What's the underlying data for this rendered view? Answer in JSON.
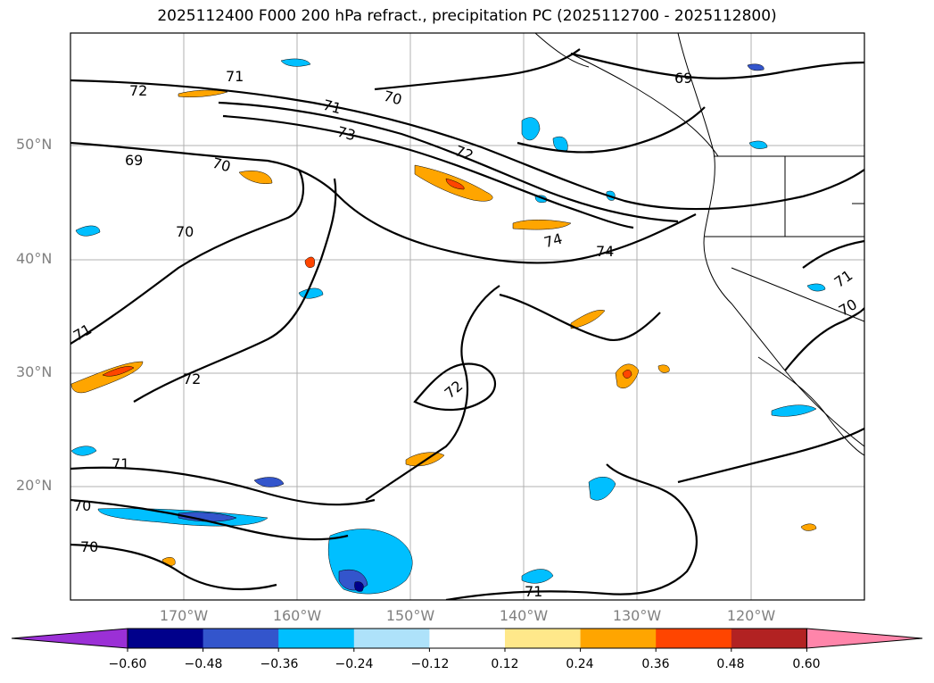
{
  "title": "2025112400 F000 200 hPa refract., precipitation PC (2025112700 - 2025112800)",
  "map": {
    "lat_labels": [
      "50°N",
      "40°N",
      "30°N",
      "20°N"
    ],
    "lon_labels": [
      "170°W",
      "160°W",
      "150°W",
      "140°W",
      "130°W",
      "120°W"
    ],
    "contour_labels": [
      "72",
      "71",
      "70",
      "71",
      "73",
      "72",
      "69",
      "70",
      "70",
      "74",
      "74",
      "71",
      "72",
      "72",
      "71",
      "70",
      "70",
      "71",
      "69",
      "71",
      "70"
    ]
  },
  "colorbar": {
    "colors": [
      "#9b30d6",
      "#00008b",
      "#3355cc",
      "#00bfff",
      "#aee2fa",
      "#ffffff",
      "#ffe88a",
      "#ffa500",
      "#ff4500",
      "#b22222",
      "#ff85aa"
    ],
    "tick_labels": [
      "−0.60",
      "−0.48",
      "−0.36",
      "−0.24",
      "−0.12",
      "0.12",
      "0.24",
      "0.36",
      "0.48",
      "0.60"
    ]
  }
}
